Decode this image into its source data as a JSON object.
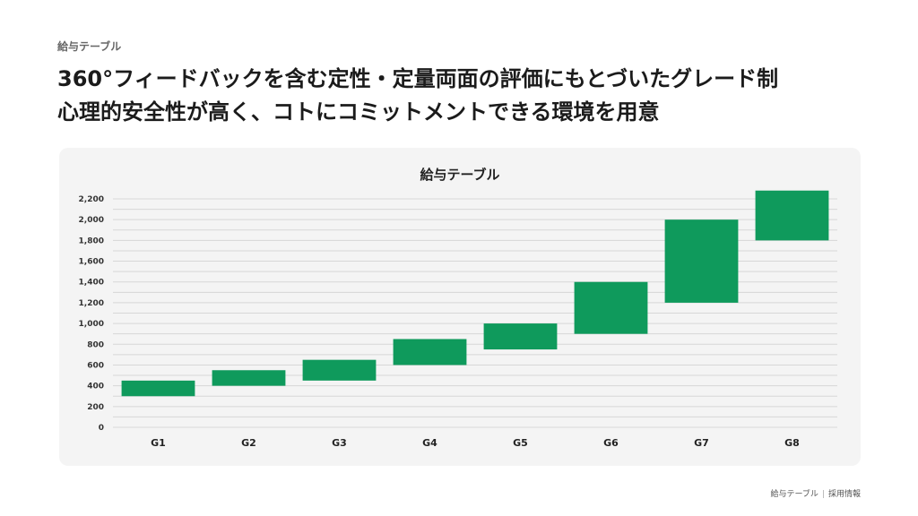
{
  "header": {
    "section_label": "給与テーブル",
    "headline_line1": "360°フィードバックを含む定性・定量両面の評価にもとづいたグレード制",
    "headline_line2": "心理的安全性が高く、コトにコミットメントできる環境を用意"
  },
  "footer": {
    "left": "給与テーブル",
    "right": "採用情報"
  },
  "colors": {
    "bar": "#0f9a5c",
    "grid": "#d7d7d7",
    "card_bg": "#f4f4f4"
  },
  "chart_data": {
    "type": "bar",
    "subtype": "floating-range",
    "title": "給与テーブル",
    "xlabel": "",
    "ylabel": "",
    "categories": [
      "G1",
      "G2",
      "G3",
      "G4",
      "G5",
      "G6",
      "G7",
      "G8"
    ],
    "series": [
      {
        "ranges": [
          [
            300,
            450
          ],
          [
            400,
            550
          ],
          [
            450,
            650
          ],
          [
            600,
            850
          ],
          [
            750,
            1000
          ],
          [
            900,
            1400
          ],
          [
            1200,
            2000
          ],
          [
            1800,
            2280
          ]
        ]
      }
    ],
    "ylim": [
      0,
      2200
    ],
    "yticks": [
      0,
      200,
      400,
      600,
      800,
      1000,
      1200,
      1400,
      1600,
      1800,
      2000,
      2200
    ],
    "ytick_labels": [
      "0",
      "200",
      "400",
      "600",
      "800",
      "1,000",
      "1,200",
      "1,400",
      "1,600",
      "1,800",
      "2,000",
      "2,200"
    ],
    "grid": true,
    "legend": "none"
  }
}
